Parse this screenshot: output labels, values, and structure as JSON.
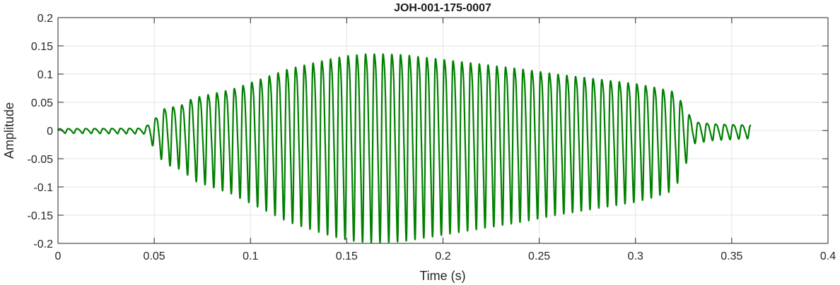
{
  "chart_data": {
    "type": "line",
    "title": "JOH-001-175-0007",
    "xlabel": "Time (s)",
    "ylabel": "Amplitude",
    "xlim": [
      0,
      0.4
    ],
    "ylim": [
      -0.2,
      0.2
    ],
    "xticks": [
      0,
      0.05,
      0.1,
      0.15,
      0.2,
      0.25,
      0.3,
      0.35,
      0.4
    ],
    "xtick_labels": [
      "0",
      "0.05",
      "0.1",
      "0.15",
      "0.2",
      "0.25",
      "0.3",
      "0.35",
      "0.4"
    ],
    "yticks": [
      0.2,
      0.15,
      0.1,
      0.05,
      0,
      -0.05,
      -0.1,
      -0.15,
      -0.2
    ],
    "ytick_labels": [
      "0.2",
      "0.15",
      "0.1",
      "0.05",
      "0",
      "-0.05",
      "-0.1",
      "-0.15",
      "-0.2"
    ],
    "grid": true,
    "series": [
      {
        "color": "#008000",
        "duration": 0.36,
        "frequency_hz": 220,
        "envelope": [
          [
            0.0,
            0.004
          ],
          [
            0.045,
            0.005
          ],
          [
            0.048,
            0.02
          ],
          [
            0.05,
            0.025
          ],
          [
            0.055,
            0.05
          ],
          [
            0.06,
            0.055
          ],
          [
            0.065,
            0.06
          ],
          [
            0.07,
            0.075
          ],
          [
            0.08,
            0.085
          ],
          [
            0.09,
            0.095
          ],
          [
            0.1,
            0.11
          ],
          [
            0.11,
            0.125
          ],
          [
            0.12,
            0.14
          ],
          [
            0.13,
            0.15
          ],
          [
            0.14,
            0.16
          ],
          [
            0.15,
            0.168
          ],
          [
            0.16,
            0.172
          ],
          [
            0.17,
            0.172
          ],
          [
            0.18,
            0.17
          ],
          [
            0.19,
            0.165
          ],
          [
            0.2,
            0.16
          ],
          [
            0.22,
            0.15
          ],
          [
            0.24,
            0.14
          ],
          [
            0.26,
            0.128
          ],
          [
            0.28,
            0.118
          ],
          [
            0.3,
            0.108
          ],
          [
            0.31,
            0.1
          ],
          [
            0.32,
            0.09
          ],
          [
            0.325,
            0.06
          ],
          [
            0.33,
            0.02
          ],
          [
            0.34,
            0.015
          ],
          [
            0.36,
            0.012
          ]
        ]
      }
    ]
  }
}
